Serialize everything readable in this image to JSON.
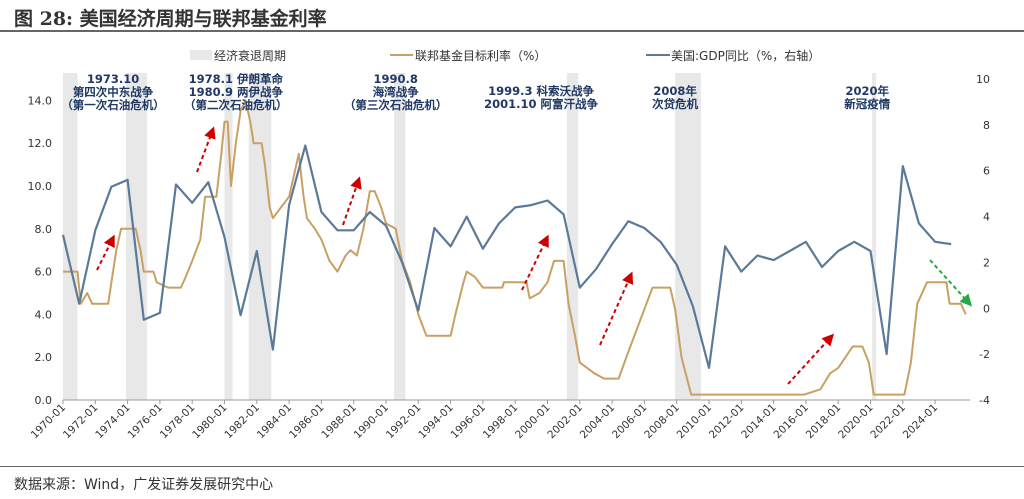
{
  "header": {
    "title": "图 28:  美国经济周期与联邦基金利率"
  },
  "footer": {
    "source": "数据来源：Wind，广发证券发展研究中心"
  },
  "chart_data": {
    "type": "line",
    "title": "美国经济周期与联邦基金利率",
    "legend": [
      "经济衰退周期",
      "联邦基金目标利率（%）",
      "美国:GDP同比（%，右轴）"
    ],
    "legend_position": "top",
    "colors": {
      "recession": "#e8e8e8",
      "fed": "#c9a063",
      "gdp": "#5b7a99",
      "annotation": "#1f3864",
      "arrow_red": "#cc0000",
      "arrow_green": "#22aa44"
    },
    "ylim_left": [
      0,
      15
    ],
    "ylim_right": [
      -4,
      10
    ],
    "yticks_left": [
      "0.0",
      "2.0",
      "4.0",
      "6.0",
      "8.0",
      "10.0",
      "12.0",
      "14.0"
    ],
    "yticks_left_values": [
      0,
      2,
      4,
      6,
      8,
      10,
      12,
      14
    ],
    "yticks_right": [
      "-4",
      "-2",
      "0",
      "2",
      "4",
      "6",
      "8",
      "10"
    ],
    "yticks_right_values": [
      -4,
      -2,
      0,
      2,
      4,
      6,
      8,
      10
    ],
    "xticks": [
      "1970-01",
      "1972-01",
      "1974-01",
      "1976-01",
      "1978-01",
      "1980-01",
      "1982-01",
      "1984-01",
      "1986-01",
      "1988-01",
      "1990-01",
      "1992-01",
      "1994-01",
      "1996-01",
      "1998-01",
      "2000-01",
      "2002-01",
      "2004-01",
      "2006-01",
      "2008-01",
      "2010-01",
      "2012-01",
      "2014-01",
      "2016-01",
      "2018-01",
      "2020-01",
      "2022-01",
      "2024-01"
    ],
    "recessions": [
      [
        1970.0,
        1970.9
      ],
      [
        1973.9,
        1975.2
      ],
      [
        1980.0,
        1980.5
      ],
      [
        1981.5,
        1982.9
      ],
      [
        1990.5,
        1991.2
      ],
      [
        2001.2,
        2001.9
      ],
      [
        2007.9,
        2009.5
      ],
      [
        2020.1,
        2020.35
      ]
    ],
    "series": [
      {
        "name": "联邦基金目标利率（%）",
        "axis": "left",
        "points": [
          [
            1970,
            6
          ],
          [
            1970.9,
            6
          ],
          [
            1971.1,
            4.5
          ],
          [
            1971.5,
            5
          ],
          [
            1971.8,
            4.5
          ],
          [
            1972.8,
            4.5
          ],
          [
            1973,
            5.5
          ],
          [
            1973.3,
            7
          ],
          [
            1973.6,
            8
          ],
          [
            1974.5,
            8
          ],
          [
            1974.8,
            7
          ],
          [
            1975,
            6
          ],
          [
            1975.6,
            6
          ],
          [
            1975.8,
            5.5
          ],
          [
            1976.5,
            5.25
          ],
          [
            1977.3,
            5.25
          ],
          [
            1977.6,
            5.75
          ],
          [
            1978,
            6.5
          ],
          [
            1978.5,
            7.5
          ],
          [
            1978.8,
            9.5
          ],
          [
            1979.5,
            9.5
          ],
          [
            1979.8,
            11.5
          ],
          [
            1980,
            13
          ],
          [
            1980.2,
            13
          ],
          [
            1980.4,
            10
          ],
          [
            1980.7,
            12
          ],
          [
            1981,
            13.5
          ],
          [
            1981.3,
            14
          ],
          [
            1981.6,
            13
          ],
          [
            1981.8,
            12
          ],
          [
            1982.3,
            12
          ],
          [
            1982.5,
            11
          ],
          [
            1982.8,
            9
          ],
          [
            1983,
            8.5
          ],
          [
            1983.5,
            9
          ],
          [
            1984,
            9.5
          ],
          [
            1984.6,
            11.5
          ],
          [
            1984.9,
            9.5
          ],
          [
            1985.1,
            8.5
          ],
          [
            1985.6,
            8
          ],
          [
            1986,
            7.5
          ],
          [
            1986.5,
            6.5
          ],
          [
            1987,
            6
          ],
          [
            1987.5,
            6.75
          ],
          [
            1987.8,
            7
          ],
          [
            1988.2,
            6.75
          ],
          [
            1988.6,
            8
          ],
          [
            1989,
            9.75
          ],
          [
            1989.3,
            9.75
          ],
          [
            1989.7,
            9
          ],
          [
            1990,
            8.25
          ],
          [
            1990.6,
            8
          ],
          [
            1991,
            6.5
          ],
          [
            1991.5,
            5.5
          ],
          [
            1992,
            4
          ],
          [
            1992.5,
            3
          ],
          [
            1994,
            3
          ],
          [
            1994.3,
            4
          ],
          [
            1994.8,
            5.5
          ],
          [
            1995,
            6
          ],
          [
            1995.5,
            5.75
          ],
          [
            1996,
            5.25
          ],
          [
            1997.2,
            5.25
          ],
          [
            1997.3,
            5.5
          ],
          [
            1998.7,
            5.5
          ],
          [
            1998.9,
            4.75
          ],
          [
            1999.5,
            5
          ],
          [
            2000,
            5.5
          ],
          [
            2000.4,
            6.5
          ],
          [
            2001,
            6.5
          ],
          [
            2001.3,
            4.5
          ],
          [
            2001.7,
            3
          ],
          [
            2002,
            1.75
          ],
          [
            2002.9,
            1.25
          ],
          [
            2003.5,
            1
          ],
          [
            2004.4,
            1
          ],
          [
            2005,
            2.25
          ],
          [
            2006,
            4.25
          ],
          [
            2006.5,
            5.25
          ],
          [
            2007.6,
            5.25
          ],
          [
            2007.9,
            4.25
          ],
          [
            2008.3,
            2
          ],
          [
            2008.9,
            0.25
          ],
          [
            2015.9,
            0.25
          ],
          [
            2016.9,
            0.5
          ],
          [
            2017.5,
            1.25
          ],
          [
            2018,
            1.5
          ],
          [
            2018.9,
            2.5
          ],
          [
            2019.5,
            2.5
          ],
          [
            2019.9,
            1.75
          ],
          [
            2020.2,
            0.25
          ],
          [
            2022.1,
            0.25
          ],
          [
            2022.5,
            1.75
          ],
          [
            2022.9,
            4.5
          ],
          [
            2023.5,
            5.5
          ],
          [
            2024.7,
            5.5
          ],
          [
            2024.9,
            4.5
          ],
          [
            2025.6,
            4.5
          ],
          [
            2025.9,
            4
          ]
        ]
      },
      {
        "name": "美国:GDP同比（%，右轴）",
        "axis": "right",
        "points": [
          [
            1970,
            3.2
          ],
          [
            1971,
            0.2
          ],
          [
            1972,
            3.4
          ],
          [
            1973,
            5.3
          ],
          [
            1974,
            5.6
          ],
          [
            1975,
            -0.5
          ],
          [
            1976,
            -0.2
          ],
          [
            1977,
            5.4
          ],
          [
            1978,
            4.6
          ],
          [
            1979,
            5.5
          ],
          [
            1980,
            3.1
          ],
          [
            1981,
            -0.3
          ],
          [
            1982,
            2.5
          ],
          [
            1983,
            -1.8
          ],
          [
            1984,
            4.5
          ],
          [
            1985,
            7.1
          ],
          [
            1986,
            4.2
          ],
          [
            1987,
            3.4
          ],
          [
            1988,
            3.4
          ],
          [
            1989,
            4.2
          ],
          [
            1990,
            3.6
          ],
          [
            1991,
            2.0
          ],
          [
            1992,
            -0.1
          ],
          [
            1993,
            3.5
          ],
          [
            1994,
            2.7
          ],
          [
            1995,
            4.0
          ],
          [
            1996,
            2.6
          ],
          [
            1997,
            3.7
          ],
          [
            1998,
            4.4
          ],
          [
            1999,
            4.5
          ],
          [
            2000,
            4.7
          ],
          [
            2001,
            4.1
          ],
          [
            2002,
            0.9
          ],
          [
            2003,
            1.7
          ],
          [
            2004,
            2.8
          ],
          [
            2005,
            3.8
          ],
          [
            2006,
            3.5
          ],
          [
            2007,
            2.9
          ],
          [
            2008,
            1.9
          ],
          [
            2009,
            0.1
          ],
          [
            2010,
            -2.6
          ],
          [
            2011,
            2.7
          ],
          [
            2012,
            1.6
          ],
          [
            2013,
            2.3
          ],
          [
            2014,
            2.1
          ],
          [
            2015,
            2.5
          ],
          [
            2016,
            2.9
          ],
          [
            2017,
            1.8
          ],
          [
            2018,
            2.5
          ],
          [
            2019,
            2.9
          ],
          [
            2020,
            2.5
          ],
          [
            2021,
            -2.0
          ],
          [
            2022,
            6.2
          ],
          [
            2023,
            3.7
          ],
          [
            2024,
            2.9
          ],
          [
            2025,
            2.8
          ]
        ]
      }
    ],
    "annotations": [
      {
        "lines": [
          "1973.10",
          "第四次中东战争",
          "（第一次石油危机）"
        ],
        "year": 1973.1
      },
      {
        "lines": [
          "1978.1  伊朗革命",
          "1980.9  两伊战争",
          "（第二次石油危机）"
        ],
        "year": 1980.7
      },
      {
        "lines": [
          "1990.8",
          "海湾战争",
          "（第三次石油危机）"
        ],
        "year": 1990.6
      },
      {
        "lines": [
          "1999.3 科索沃战争",
          "2001.10 阿富汗战争"
        ],
        "year": 1999.6
      },
      {
        "lines": [
          "2008年",
          "次贷危机"
        ],
        "year": 2007.9
      },
      {
        "lines": [
          "2020年",
          "新冠疫情"
        ],
        "year": 2019.8
      }
    ]
  }
}
